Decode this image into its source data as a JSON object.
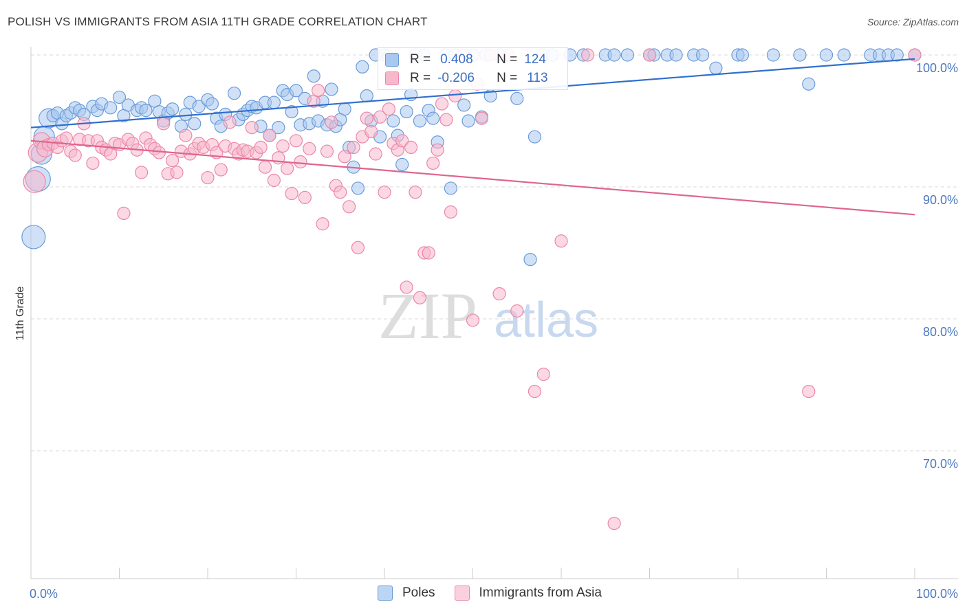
{
  "title": "POLISH VS IMMIGRANTS FROM ASIA 11TH GRADE CORRELATION CHART",
  "source": "Source: ZipAtlas.com",
  "watermark": {
    "zip": "ZIP",
    "atlas": "atlas"
  },
  "legend": {
    "r_label": "R =",
    "n_label": "N =",
    "rows": [
      {
        "name": "Poles",
        "r": "0.408",
        "n": "124"
      },
      {
        "name": "Immigrants from Asia",
        "r": "-0.206",
        "n": "113"
      }
    ]
  },
  "colors": {
    "blue_fill": "#a9c8f0",
    "blue_stroke": "#6a9bd8",
    "blue_line": "#2f6fcf",
    "pink_fill": "#f7b8cc",
    "pink_stroke": "#ea88a8",
    "pink_line": "#e0648e",
    "grid": "#d9d9d9",
    "tick_label": "#4a78c2"
  },
  "chart_data": {
    "type": "scatter",
    "title": "POLISH VS IMMIGRANTS FROM ASIA 11TH GRADE CORRELATION CHART",
    "xlabel": "",
    "ylabel": "11th Grade",
    "xlim": [
      0,
      100
    ],
    "ylim": [
      61,
      102
    ],
    "x_ticks": [
      "0.0%",
      "100.0%"
    ],
    "y_ticks": [
      {
        "value": 100,
        "label": "100.0%"
      },
      {
        "value": 90,
        "label": "90.0%"
      },
      {
        "value": 80,
        "label": "80.0%"
      },
      {
        "value": 70,
        "label": "70.0%"
      }
    ],
    "grid": true,
    "legend_position": "bottom",
    "series": [
      {
        "name": "Poles",
        "trendline": [
          [
            0,
            94.5
          ],
          [
            100,
            99.7
          ]
        ],
        "points": [
          [
            0.3,
            86.2
          ],
          [
            0.8,
            90.6
          ],
          [
            1.2,
            92.5
          ],
          [
            1.5,
            93.8
          ],
          [
            2.0,
            95.2
          ],
          [
            2.5,
            95.4
          ],
          [
            3.0,
            95.6
          ],
          [
            3.5,
            94.8
          ],
          [
            4.0,
            95.4
          ],
          [
            4.5,
            95.6
          ],
          [
            5.0,
            96.0
          ],
          [
            5.5,
            95.8
          ],
          [
            6.0,
            95.5
          ],
          [
            7.0,
            96.1
          ],
          [
            7.5,
            95.8
          ],
          [
            8.0,
            96.3
          ],
          [
            9.0,
            96.0
          ],
          [
            10.0,
            96.8
          ],
          [
            10.5,
            95.4
          ],
          [
            11.0,
            96.2
          ],
          [
            12.0,
            95.8
          ],
          [
            12.5,
            96.0
          ],
          [
            13.0,
            95.8
          ],
          [
            14.0,
            96.5
          ],
          [
            14.5,
            95.7
          ],
          [
            15.0,
            95.0
          ],
          [
            15.5,
            95.6
          ],
          [
            16.0,
            95.9
          ],
          [
            17.0,
            94.6
          ],
          [
            17.5,
            95.5
          ],
          [
            18.0,
            96.4
          ],
          [
            18.5,
            94.8
          ],
          [
            19.0,
            96.1
          ],
          [
            20.0,
            96.6
          ],
          [
            20.5,
            96.3
          ],
          [
            21.0,
            95.2
          ],
          [
            21.5,
            94.6
          ],
          [
            22.0,
            95.5
          ],
          [
            23.0,
            97.1
          ],
          [
            23.5,
            95.1
          ],
          [
            24.0,
            95.5
          ],
          [
            24.5,
            95.8
          ],
          [
            25.0,
            96.1
          ],
          [
            25.5,
            96.0
          ],
          [
            26.0,
            94.6
          ],
          [
            26.5,
            96.4
          ],
          [
            27.0,
            93.9
          ],
          [
            27.5,
            96.4
          ],
          [
            28.0,
            94.5
          ],
          [
            28.5,
            97.3
          ],
          [
            29.0,
            97.0
          ],
          [
            29.5,
            95.7
          ],
          [
            30.0,
            97.3
          ],
          [
            30.5,
            94.7
          ],
          [
            31.0,
            96.7
          ],
          [
            31.5,
            94.8
          ],
          [
            32.0,
            98.4
          ],
          [
            32.5,
            95.0
          ],
          [
            33.0,
            96.5
          ],
          [
            33.5,
            94.7
          ],
          [
            34.0,
            97.4
          ],
          [
            34.5,
            94.6
          ],
          [
            35.0,
            95.1
          ],
          [
            35.5,
            95.9
          ],
          [
            36.0,
            93.0
          ],
          [
            36.5,
            91.5
          ],
          [
            37.0,
            89.9
          ],
          [
            37.5,
            99.1
          ],
          [
            38.0,
            96.9
          ],
          [
            38.5,
            95.0
          ],
          [
            39.0,
            100.0
          ],
          [
            39.5,
            93.8
          ],
          [
            40.0,
            100.0
          ],
          [
            40.5,
            99.9
          ],
          [
            41.0,
            95.0
          ],
          [
            41.5,
            93.9
          ],
          [
            42.0,
            91.7
          ],
          [
            42.5,
            95.7
          ],
          [
            43.0,
            97.0
          ],
          [
            43.5,
            100.0
          ],
          [
            44.0,
            95.0
          ],
          [
            44.5,
            100.0
          ],
          [
            45.0,
            95.8
          ],
          [
            45.5,
            95.2
          ],
          [
            46.0,
            93.4
          ],
          [
            47.0,
            100.0
          ],
          [
            47.5,
            89.9
          ],
          [
            48.0,
            100.0
          ],
          [
            49.0,
            96.2
          ],
          [
            49.5,
            95.0
          ],
          [
            50.0,
            100.0
          ],
          [
            51.0,
            95.3
          ],
          [
            51.5,
            100.0
          ],
          [
            52.0,
            96.9
          ],
          [
            53.0,
            100.0
          ],
          [
            55.0,
            96.7
          ],
          [
            56.5,
            84.5
          ],
          [
            57.0,
            93.8
          ],
          [
            58.0,
            100.0
          ],
          [
            59.0,
            100.0
          ],
          [
            61.0,
            100.0
          ],
          [
            62.5,
            100.0
          ],
          [
            65.0,
            100.0
          ],
          [
            66.0,
            100.0
          ],
          [
            67.5,
            100.0
          ],
          [
            70.0,
            100.0
          ],
          [
            70.5,
            100.0
          ],
          [
            72.0,
            100.0
          ],
          [
            73.0,
            100.0
          ],
          [
            75.0,
            100.0
          ],
          [
            76.0,
            100.0
          ],
          [
            77.5,
            99.0
          ],
          [
            80.0,
            100.0
          ],
          [
            80.5,
            100.0
          ],
          [
            84.0,
            100.0
          ],
          [
            87.0,
            100.0
          ],
          [
            88.0,
            97.8
          ],
          [
            90.0,
            100.0
          ],
          [
            92.0,
            100.0
          ],
          [
            95.0,
            100.0
          ],
          [
            96.0,
            100.0
          ],
          [
            97.0,
            100.0
          ],
          [
            98.0,
            100.0
          ],
          [
            100.0,
            100.0
          ]
        ]
      },
      {
        "name": "Immigrants from Asia",
        "trendline": [
          [
            0,
            93.5
          ],
          [
            100,
            87.9
          ]
        ],
        "points": [
          [
            0.4,
            90.4
          ],
          [
            0.8,
            92.6
          ],
          [
            1.2,
            93.5
          ],
          [
            1.6,
            92.9
          ],
          [
            2.0,
            93.2
          ],
          [
            2.5,
            93.3
          ],
          [
            3.0,
            93.0
          ],
          [
            3.5,
            93.5
          ],
          [
            4.0,
            93.7
          ],
          [
            4.5,
            92.7
          ],
          [
            5.0,
            92.4
          ],
          [
            5.5,
            93.6
          ],
          [
            6.0,
            94.8
          ],
          [
            6.5,
            93.5
          ],
          [
            7.0,
            91.8
          ],
          [
            7.5,
            93.5
          ],
          [
            8.0,
            93.0
          ],
          [
            8.5,
            92.8
          ],
          [
            9.0,
            92.5
          ],
          [
            9.5,
            93.3
          ],
          [
            10.0,
            93.2
          ],
          [
            10.5,
            88.0
          ],
          [
            11.0,
            93.6
          ],
          [
            11.5,
            93.3
          ],
          [
            12.0,
            92.8
          ],
          [
            12.5,
            91.1
          ],
          [
            13.0,
            93.7
          ],
          [
            13.5,
            93.2
          ],
          [
            14.0,
            92.9
          ],
          [
            14.5,
            92.6
          ],
          [
            15.0,
            94.8
          ],
          [
            15.5,
            91.0
          ],
          [
            16.0,
            92.0
          ],
          [
            16.5,
            91.1
          ],
          [
            17.0,
            92.7
          ],
          [
            17.5,
            93.9
          ],
          [
            18.0,
            92.5
          ],
          [
            18.5,
            92.9
          ],
          [
            19.0,
            93.3
          ],
          [
            19.5,
            93.0
          ],
          [
            20.0,
            90.7
          ],
          [
            20.5,
            93.2
          ],
          [
            21.0,
            92.6
          ],
          [
            21.5,
            91.3
          ],
          [
            22.0,
            93.1
          ],
          [
            22.5,
            94.9
          ],
          [
            23.0,
            92.9
          ],
          [
            23.5,
            92.5
          ],
          [
            24.0,
            92.8
          ],
          [
            24.5,
            92.7
          ],
          [
            25.0,
            94.5
          ],
          [
            25.5,
            92.6
          ],
          [
            26.0,
            93.0
          ],
          [
            26.5,
            91.5
          ],
          [
            27.0,
            93.9
          ],
          [
            27.5,
            90.5
          ],
          [
            28.0,
            92.2
          ],
          [
            28.5,
            93.1
          ],
          [
            29.0,
            91.4
          ],
          [
            29.5,
            89.5
          ],
          [
            30.0,
            93.5
          ],
          [
            30.5,
            91.9
          ],
          [
            31.0,
            89.2
          ],
          [
            31.5,
            92.9
          ],
          [
            32.0,
            96.5
          ],
          [
            32.5,
            97.3
          ],
          [
            33.0,
            87.2
          ],
          [
            33.5,
            92.7
          ],
          [
            34.0,
            94.9
          ],
          [
            34.5,
            90.1
          ],
          [
            35.0,
            89.6
          ],
          [
            35.5,
            92.3
          ],
          [
            36.0,
            88.5
          ],
          [
            36.5,
            93.0
          ],
          [
            37.0,
            85.4
          ],
          [
            37.5,
            93.8
          ],
          [
            38.0,
            95.2
          ],
          [
            38.5,
            94.2
          ],
          [
            39.0,
            92.5
          ],
          [
            39.5,
            95.3
          ],
          [
            40.0,
            89.6
          ],
          [
            40.5,
            95.9
          ],
          [
            41.0,
            93.3
          ],
          [
            41.5,
            92.8
          ],
          [
            42.0,
            93.5
          ],
          [
            42.5,
            82.4
          ],
          [
            43.0,
            93.0
          ],
          [
            43.5,
            89.6
          ],
          [
            44.0,
            81.6
          ],
          [
            44.5,
            85.0
          ],
          [
            45.0,
            85.0
          ],
          [
            45.5,
            91.8
          ],
          [
            46.0,
            92.8
          ],
          [
            46.5,
            96.3
          ],
          [
            47.0,
            95.1
          ],
          [
            47.5,
            88.1
          ],
          [
            48.0,
            96.9
          ],
          [
            49.0,
            100.0
          ],
          [
            50.0,
            79.9
          ],
          [
            50.5,
            97.8
          ],
          [
            51.0,
            95.2
          ],
          [
            52.0,
            100.0
          ],
          [
            53.0,
            81.9
          ],
          [
            54.0,
            100.0
          ],
          [
            55.0,
            80.6
          ],
          [
            57.0,
            74.5
          ],
          [
            58.0,
            75.8
          ],
          [
            60.0,
            85.9
          ],
          [
            63.0,
            100.0
          ],
          [
            66.0,
            64.5
          ],
          [
            70.0,
            100.0
          ],
          [
            88.0,
            74.5
          ],
          [
            100.0,
            100.0
          ]
        ]
      }
    ]
  }
}
